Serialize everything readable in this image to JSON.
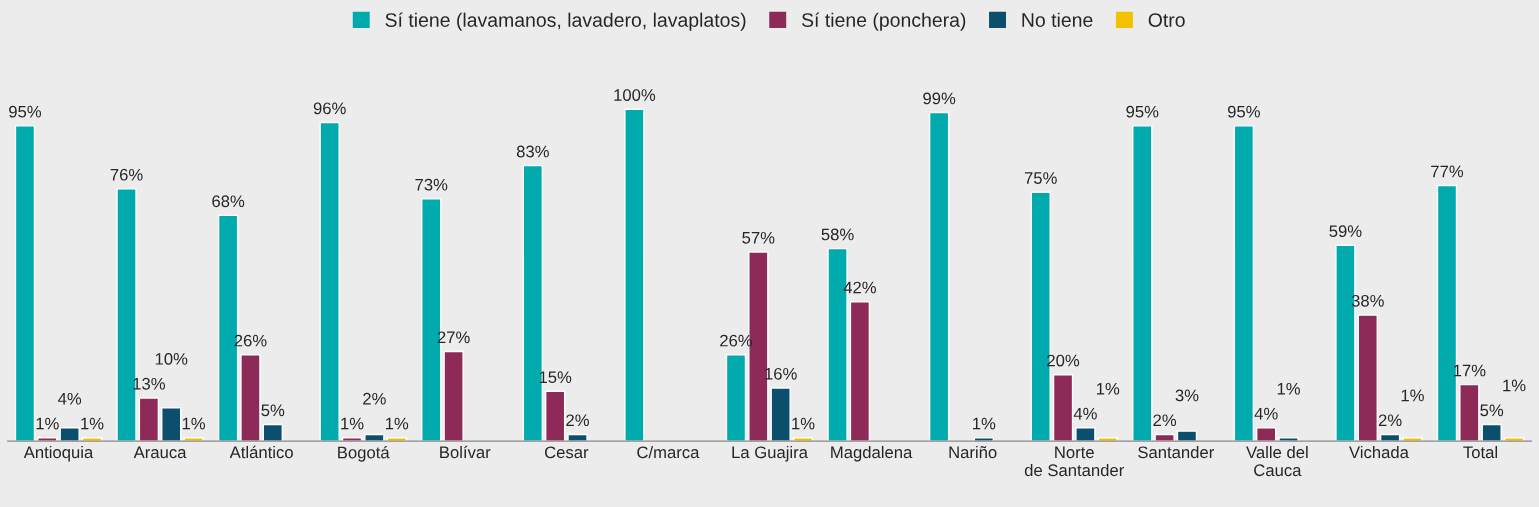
{
  "chart_data": {
    "type": "bar",
    "categories": [
      "Antioquia",
      "Arauca",
      "Atlántico",
      "Bogotá",
      "Bolívar",
      "Cesar",
      "C/marca",
      "La Guajira",
      "Magdalena",
      "Nariño",
      "Norte\nde Santander",
      "Santander",
      "Valle del\nCauca",
      "Vichada",
      "Total"
    ],
    "series": [
      {
        "name": "Sí tiene (lavamanos, lavadero, lavaplatos)",
        "color": "#00aaad",
        "values": [
          95,
          76,
          68,
          96,
          73,
          83,
          100,
          26,
          58,
          99,
          75,
          95,
          95,
          59,
          77
        ],
        "value_labels": [
          "95%",
          "76%",
          "68%",
          "96%",
          "73%",
          "83%",
          "100%",
          "26%",
          "58%",
          "99%",
          "75%",
          "95%",
          "95%",
          "59%",
          "77%"
        ]
      },
      {
        "name": "Sí tiene (ponchera)",
        "color": "#8e2a57",
        "values": [
          1,
          13,
          26,
          1,
          27,
          15,
          null,
          57,
          42,
          null,
          20,
          2,
          4,
          38,
          17
        ],
        "value_labels": [
          "1%",
          "13%",
          "26%",
          "1%",
          "27%",
          "15%",
          null,
          "57%",
          "42%",
          null,
          "20%",
          "2%",
          "4%",
          "38%",
          "17%"
        ]
      },
      {
        "name": "No tiene",
        "color": "#0b4f6c",
        "values": [
          4,
          10,
          5,
          2,
          null,
          2,
          null,
          16,
          null,
          1,
          4,
          3,
          1,
          2,
          5
        ],
        "value_labels": [
          "4%",
          "10%",
          "5%",
          "2%",
          null,
          "2%",
          null,
          "16%",
          null,
          "1%",
          "4%",
          "3%",
          "1%",
          "2%",
          "5%"
        ]
      },
      {
        "name": "Otro",
        "color": "#f2c200",
        "values": [
          1,
          1,
          null,
          1,
          null,
          null,
          null,
          1,
          null,
          null,
          1,
          null,
          null,
          1,
          1
        ],
        "value_labels": [
          "1%",
          "1%",
          null,
          "1%",
          null,
          null,
          null,
          "1%",
          null,
          null,
          "1%",
          null,
          null,
          "1%",
          "1%"
        ]
      }
    ],
    "legend": "top",
    "grid": false
  }
}
